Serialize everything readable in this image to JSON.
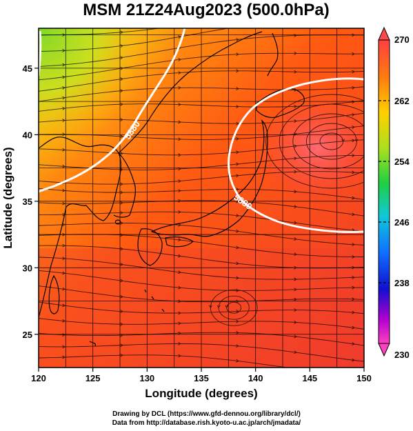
{
  "title": "MSM 21Z24Aug2023 (500.0hPa)",
  "map": {
    "xlabel": "Longitude (degrees)",
    "ylabel": "Latitude  (degrees)",
    "lon_range": [
      120,
      150
    ],
    "lat_range": [
      22.5,
      48
    ],
    "lon_ticks": [
      "120",
      "125",
      "130",
      "135",
      "140",
      "145",
      "150"
    ],
    "lat_ticks": [
      "25",
      "30",
      "35",
      "40",
      "45"
    ],
    "grid": true,
    "contour_labels": [
      "5880",
      "5880"
    ]
  },
  "colorbar": {
    "labels": [
      "270",
      "262",
      "254",
      "246",
      "238",
      "230"
    ],
    "stops": [
      "#ff4040",
      "#ff7a10",
      "#ffd000",
      "#90e020",
      "#20d040",
      "#10c8d8",
      "#1070ff",
      "#1010d0",
      "#b000d0",
      "#ff40c0"
    ]
  },
  "credits": {
    "line1": "Drawing by DCL (https://www.gfd-dennou.org/library/dcl/)",
    "line2": "Data from http://database.rish.kyoto-u.ac.jp/arch/jmadata/"
  }
}
